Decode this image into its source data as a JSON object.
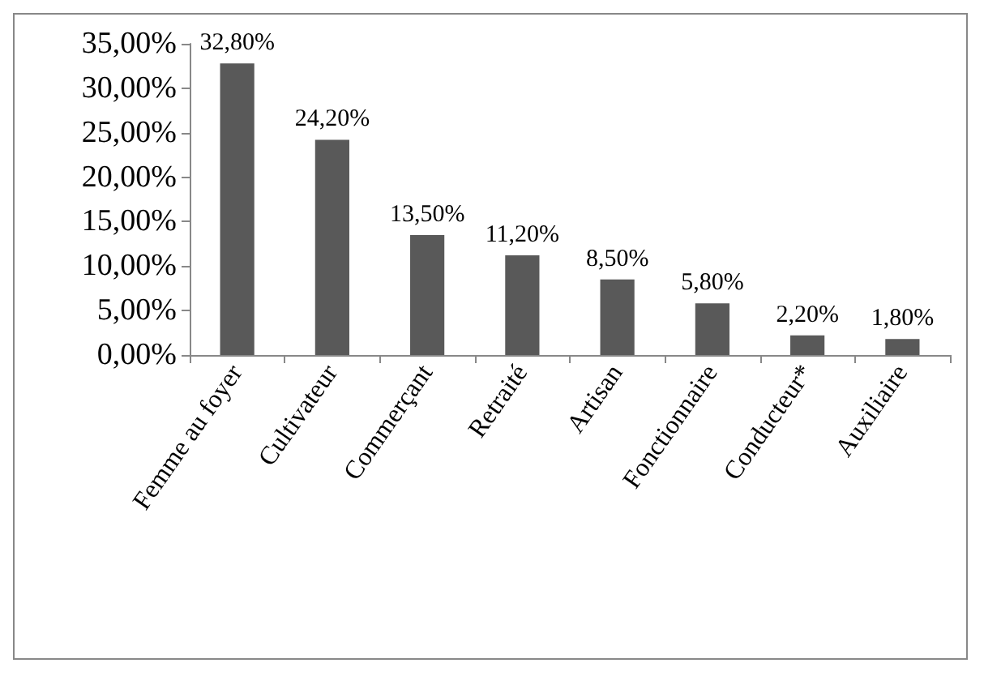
{
  "chart_data": {
    "type": "bar",
    "categories": [
      "Femme au foyer",
      "Cultivateur",
      "Commerçant",
      "Retraité",
      "Artisan",
      "Fonctionnaire",
      "Conducteur*",
      "Auxiliaire"
    ],
    "values": [
      32.8,
      24.2,
      13.5,
      11.2,
      8.5,
      5.8,
      2.2,
      1.8
    ],
    "value_labels": [
      "32,80%",
      "24,20%",
      "13,50%",
      "11,20%",
      "8,50%",
      "5,80%",
      "2,20%",
      "1,80%"
    ],
    "color": "#595959",
    "ylim": [
      0,
      35
    ],
    "yticks": [
      {
        "value": 0,
        "label": "0,00%"
      },
      {
        "value": 5,
        "label": "5,00%"
      },
      {
        "value": 10,
        "label": "10,00%"
      },
      {
        "value": 15,
        "label": "15,00%"
      },
      {
        "value": 20,
        "label": "20,00%"
      },
      {
        "value": 25,
        "label": "25,00%"
      },
      {
        "value": 30,
        "label": "30,00%"
      },
      {
        "value": 35,
        "label": "35,00%"
      }
    ],
    "grid": false
  }
}
